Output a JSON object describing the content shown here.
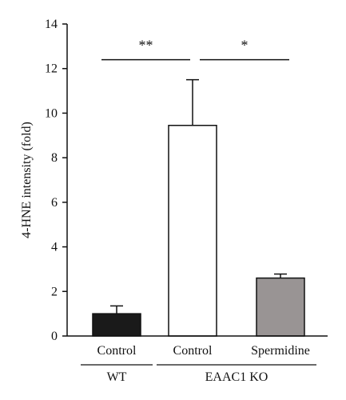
{
  "chart_data": {
    "type": "bar",
    "ylabel": "4-HNE intensity (fold)",
    "ylim": [
      0,
      14
    ],
    "yticks": [
      0,
      2,
      4,
      6,
      8,
      10,
      12,
      14
    ],
    "grid": false,
    "categories": [
      "Control",
      "Control",
      "Spermidine"
    ],
    "values": [
      1.0,
      9.45,
      2.6
    ],
    "errors": [
      0.35,
      2.05,
      0.18
    ],
    "bar_colors": [
      "#1a1a1a",
      "#ffffff",
      "#999494"
    ],
    "groups": [
      {
        "label": "WT",
        "categories": [
          0
        ]
      },
      {
        "label": "EAAC1 KO",
        "categories": [
          1,
          2
        ]
      }
    ],
    "significance": [
      {
        "label": "**",
        "from": 0,
        "to": 1
      },
      {
        "label": "*",
        "from": 1,
        "to": 2
      }
    ],
    "significance_y": 12.4
  }
}
